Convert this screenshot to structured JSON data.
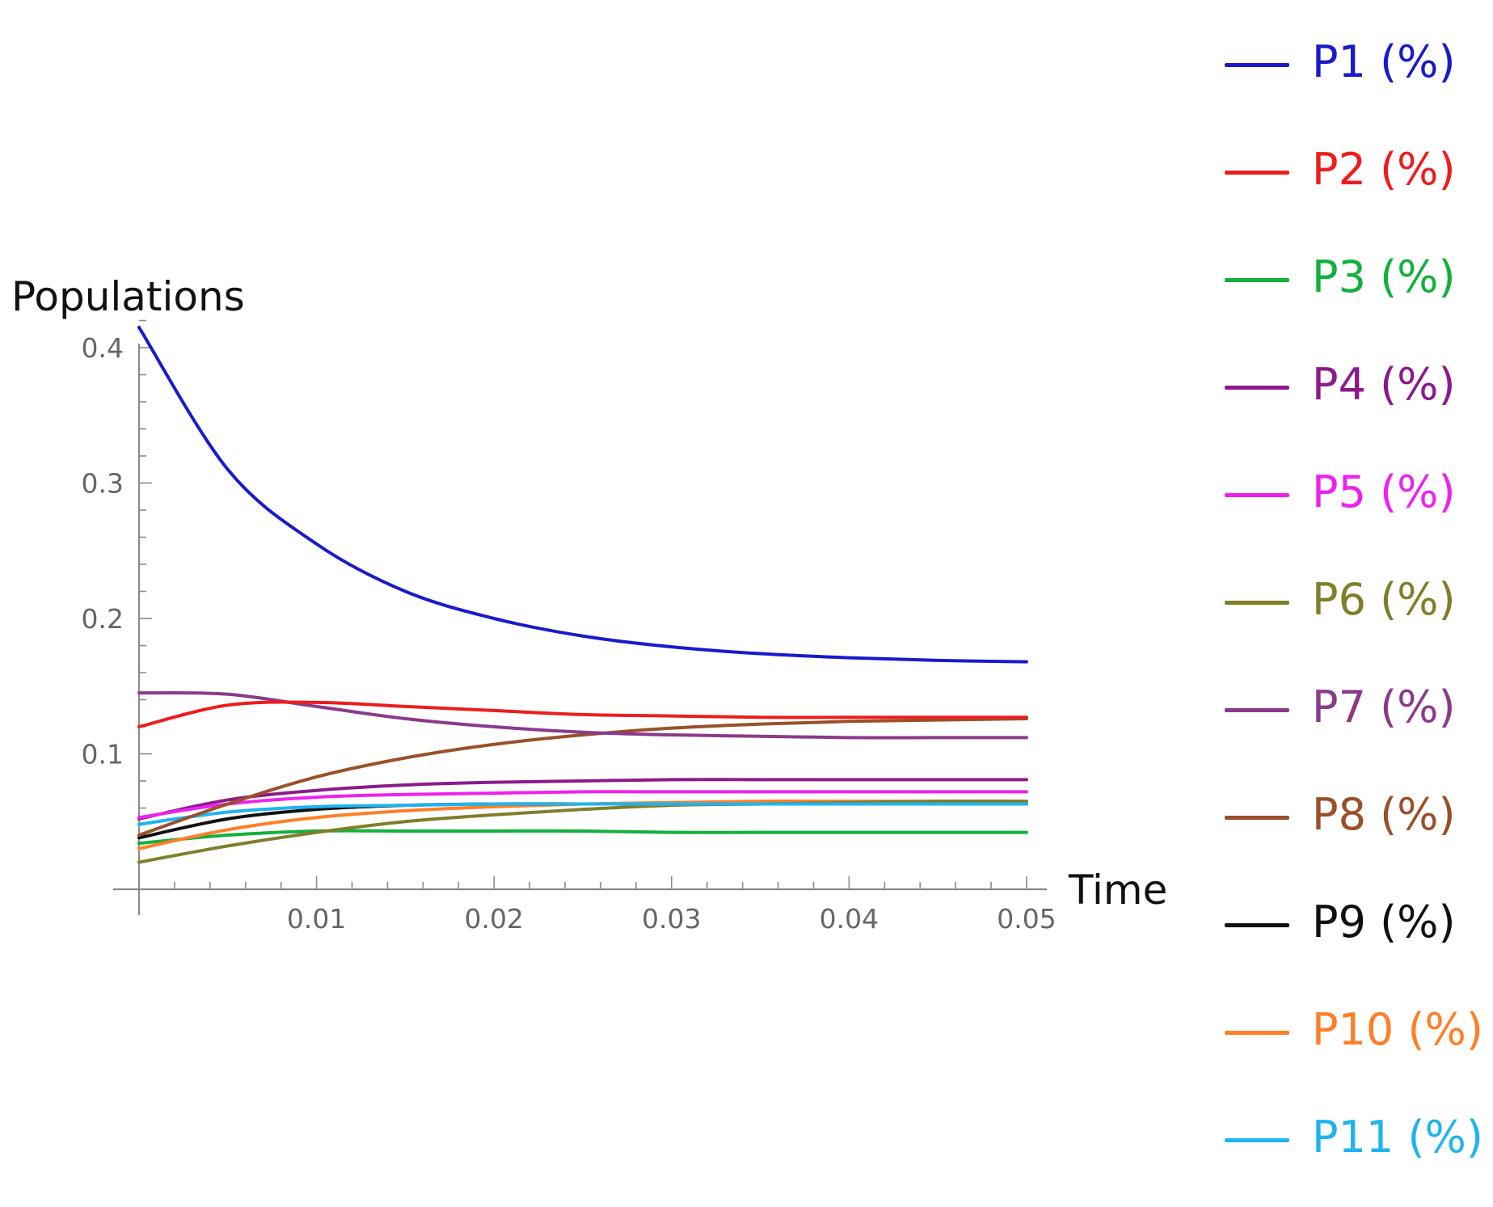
{
  "chart_data": {
    "type": "line",
    "title": "",
    "xlabel": "Time",
    "ylabel": "Populations",
    "xlim": [
      0,
      0.05
    ],
    "ylim": [
      0,
      0.42
    ],
    "x_ticks": [
      {
        "value": 0.01,
        "label": "0.01"
      },
      {
        "value": 0.02,
        "label": "0.02"
      },
      {
        "value": 0.03,
        "label": "0.03"
      },
      {
        "value": 0.04,
        "label": "0.04"
      },
      {
        "value": 0.05,
        "label": "0.05"
      }
    ],
    "y_ticks": [
      {
        "value": 0.1,
        "label": "0.1"
      },
      {
        "value": 0.2,
        "label": "0.2"
      },
      {
        "value": 0.3,
        "label": "0.3"
      },
      {
        "value": 0.4,
        "label": "0.4"
      }
    ],
    "x": [
      0,
      0.005,
      0.01,
      0.015,
      0.02,
      0.025,
      0.03,
      0.035,
      0.04,
      0.045,
      0.05
    ],
    "series": [
      {
        "name": "P1 (%)",
        "legend_label": "P1 (%)",
        "color": "#1a1acc",
        "values": [
          0.415,
          0.31,
          0.255,
          0.22,
          0.2,
          0.187,
          0.179,
          0.174,
          0.171,
          0.169,
          0.168
        ]
      },
      {
        "name": "P2 (%)",
        "legend_label": "P2 (%)",
        "color": "#ee1c1c",
        "values": [
          0.12,
          0.136,
          0.138,
          0.135,
          0.132,
          0.129,
          0.128,
          0.127,
          0.127,
          0.127,
          0.127
        ]
      },
      {
        "name": "P3 (%)",
        "legend_label": "P3 (%)",
        "color": "#12b03c",
        "values": [
          0.034,
          0.04,
          0.043,
          0.043,
          0.043,
          0.043,
          0.042,
          0.042,
          0.042,
          0.042,
          0.042
        ]
      },
      {
        "name": "P4 (%)",
        "legend_label": "P4 (%)",
        "color": "#8c1a8c",
        "values": [
          0.052,
          0.066,
          0.073,
          0.077,
          0.079,
          0.08,
          0.081,
          0.081,
          0.081,
          0.081,
          0.081
        ]
      },
      {
        "name": "P5 (%)",
        "legend_label": "P5 (%)",
        "color": "#ee22ee",
        "values": [
          0.053,
          0.063,
          0.068,
          0.07,
          0.071,
          0.072,
          0.072,
          0.072,
          0.072,
          0.072,
          0.072
        ]
      },
      {
        "name": "P6 (%)",
        "legend_label": "P6 (%)",
        "color": "#7f7f2a",
        "values": [
          0.02,
          0.032,
          0.042,
          0.05,
          0.055,
          0.059,
          0.062,
          0.063,
          0.064,
          0.065,
          0.065
        ]
      },
      {
        "name": "P7 (%)",
        "legend_label": "P7 (%)",
        "color": "#8b3a8b",
        "values": [
          0.145,
          0.144,
          0.135,
          0.126,
          0.12,
          0.116,
          0.114,
          0.113,
          0.112,
          0.112,
          0.112
        ]
      },
      {
        "name": "P8 (%)",
        "legend_label": "P8 (%)",
        "color": "#9a5028",
        "values": [
          0.04,
          0.063,
          0.083,
          0.097,
          0.107,
          0.114,
          0.119,
          0.122,
          0.124,
          0.125,
          0.126
        ]
      },
      {
        "name": "P9 (%)",
        "legend_label": "P9 (%)",
        "color": "#111111",
        "values": [
          0.038,
          0.052,
          0.059,
          0.062,
          0.063,
          0.063,
          0.063,
          0.063,
          0.063,
          0.063,
          0.063
        ]
      },
      {
        "name": "P10 (%)",
        "legend_label": "P10 (%)",
        "color": "#ff7f27",
        "values": [
          0.03,
          0.044,
          0.053,
          0.058,
          0.061,
          0.063,
          0.064,
          0.065,
          0.065,
          0.065,
          0.065
        ]
      },
      {
        "name": "P11 (%)",
        "legend_label": "P11 (%)",
        "color": "#1fb4f0",
        "values": [
          0.048,
          0.057,
          0.061,
          0.062,
          0.063,
          0.063,
          0.063,
          0.063,
          0.063,
          0.063,
          0.063
        ]
      }
    ],
    "grid": false,
    "legend_position": "right"
  }
}
